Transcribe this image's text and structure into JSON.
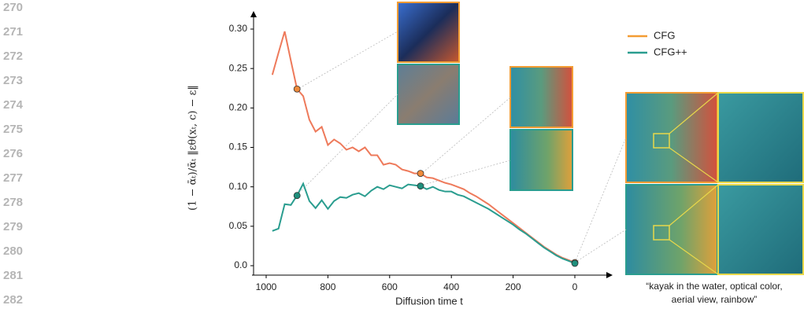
{
  "line_numbers": [
    "270",
    "271",
    "272",
    "273",
    "274",
    "275",
    "276",
    "277",
    "278",
    "279",
    "280",
    "281",
    "282"
  ],
  "chart_data": {
    "type": "line",
    "xlabel": "Diffusion time t",
    "ylabel": "(1 − ᾱₜ)/ᾱₜ ‖εθ(xₜ, c) − ε‖",
    "caption": [
      "“kayak in the water, optical color,",
      "aerial view, rainbow”"
    ],
    "x": [
      980,
      960,
      940,
      920,
      900,
      880,
      860,
      840,
      820,
      800,
      780,
      760,
      740,
      720,
      700,
      680,
      660,
      640,
      620,
      600,
      580,
      560,
      540,
      520,
      500,
      480,
      460,
      440,
      420,
      400,
      380,
      360,
      340,
      320,
      300,
      280,
      260,
      240,
      220,
      200,
      180,
      160,
      140,
      120,
      100,
      80,
      60,
      40,
      20,
      0
    ],
    "series": [
      {
        "name": "CFG",
        "color": "#ee7a5b",
        "legend_color": "#f39c33",
        "dot_color": "#ef8a3a",
        "values": [
          0.242,
          0.27,
          0.297,
          0.26,
          0.224,
          0.215,
          0.185,
          0.17,
          0.176,
          0.153,
          0.16,
          0.155,
          0.147,
          0.15,
          0.145,
          0.15,
          0.14,
          0.14,
          0.128,
          0.13,
          0.128,
          0.122,
          0.12,
          0.117,
          0.117,
          0.112,
          0.111,
          0.108,
          0.105,
          0.103,
          0.1,
          0.097,
          0.092,
          0.088,
          0.083,
          0.078,
          0.072,
          0.066,
          0.06,
          0.054,
          0.048,
          0.042,
          0.036,
          0.03,
          0.024,
          0.019,
          0.014,
          0.01,
          0.007,
          0.004
        ]
      },
      {
        "name": "CFG++",
        "color": "#2a9d8f",
        "legend_color": "#2a9d8f",
        "dot_color": "#1f8f7c",
        "values": [
          0.044,
          0.047,
          0.078,
          0.077,
          0.089,
          0.104,
          0.082,
          0.073,
          0.083,
          0.072,
          0.082,
          0.087,
          0.086,
          0.09,
          0.092,
          0.088,
          0.095,
          0.1,
          0.097,
          0.102,
          0.1,
          0.098,
          0.103,
          0.102,
          0.101,
          0.097,
          0.1,
          0.096,
          0.094,
          0.094,
          0.09,
          0.088,
          0.084,
          0.08,
          0.076,
          0.072,
          0.067,
          0.062,
          0.057,
          0.052,
          0.046,
          0.041,
          0.035,
          0.029,
          0.023,
          0.018,
          0.013,
          0.009,
          0.006,
          0.003
        ]
      }
    ],
    "highlight_x": [
      900,
      500,
      0
    ],
    "xlim": [
      1000,
      0
    ],
    "ylim": [
      0,
      0.3
    ],
    "xticks": [
      1000,
      800,
      600,
      400,
      200,
      0
    ],
    "yticks": [
      {
        "value": 0,
        "label": "0.0"
      },
      0.05,
      {
        "value": 0.1,
        "label": "0.10"
      },
      0.15,
      {
        "value": 0.2,
        "label": "0.20"
      },
      0.25,
      {
        "value": 0.3,
        "label": "0.30"
      }
    ],
    "legend": "upper right"
  }
}
